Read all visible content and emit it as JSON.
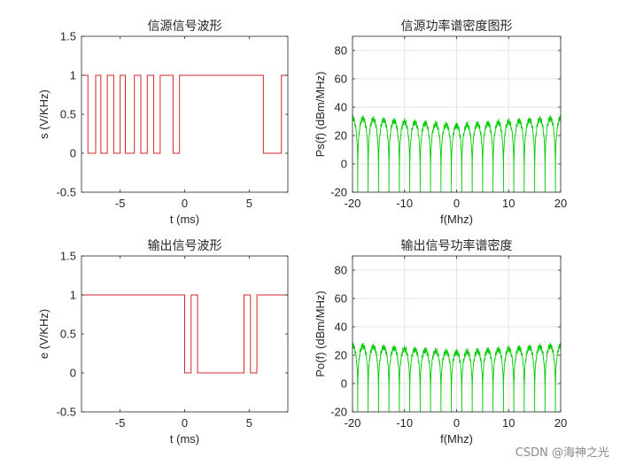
{
  "watermark": "CSDN @海神之光",
  "chart_data": [
    {
      "type": "line",
      "title": "信源信号波形",
      "xlabel": "t (ms)",
      "ylabel": "s  (V/KHz)",
      "xlim": [
        -8,
        8
      ],
      "ylim": [
        -0.5,
        1.5
      ],
      "xticks": [
        -5,
        0,
        5
      ],
      "yticks": [
        -0.5,
        0,
        0.5,
        1,
        1.5
      ],
      "grid": false,
      "series": [
        {
          "color": "#d62728",
          "x": [
            -8,
            -7.5,
            -7.5,
            -6.9,
            -6.9,
            -6.5,
            -6.5,
            -6.0,
            -6.0,
            -5.5,
            -5.5,
            -5.0,
            -5.0,
            -4.6,
            -4.6,
            -3.9,
            -3.9,
            -3.4,
            -3.4,
            -2.9,
            -2.9,
            -2.4,
            -2.4,
            -1.9,
            -1.9,
            -0.9,
            -0.9,
            -0.4,
            -0.4,
            6.1,
            6.1,
            7.5,
            7.5,
            8
          ],
          "y": [
            1,
            1,
            0,
            0,
            1,
            1,
            0,
            0,
            1,
            1,
            0,
            0,
            1,
            1,
            0,
            0,
            1,
            1,
            0,
            0,
            1,
            1,
            0,
            0,
            1,
            1,
            0,
            0,
            1,
            1,
            0,
            0,
            1,
            1
          ]
        }
      ]
    },
    {
      "type": "line",
      "title": "信源功率谱密度图形",
      "xlabel": "f(Mhz)",
      "ylabel": "Ps(f) (dBm/MHz)",
      "xlim": [
        -20,
        20
      ],
      "ylim": [
        -20,
        90
      ],
      "xticks": [
        -20,
        -10,
        0,
        10,
        20
      ],
      "yticks": [
        -20,
        0,
        20,
        40,
        60,
        80
      ],
      "grid": true,
      "series": [
        {
          "color": "#00cc00",
          "lobe_period": 2,
          "peak_level": 27,
          "null_level": -20
        }
      ]
    },
    {
      "type": "line",
      "title": "输出信号波形",
      "xlabel": "t (ms)",
      "ylabel": "e  (V/KHz)",
      "xlim": [
        -8,
        8
      ],
      "ylim": [
        -0.5,
        1.5
      ],
      "xticks": [
        -5,
        0,
        5
      ],
      "yticks": [
        -0.5,
        0,
        0.5,
        1,
        1.5
      ],
      "grid": false,
      "series": [
        {
          "color": "#d62728",
          "x": [
            -8,
            0,
            0,
            0.5,
            0.5,
            1.0,
            1.0,
            4.6,
            4.6,
            5.1,
            5.1,
            5.6,
            5.6,
            8
          ],
          "y": [
            1,
            1,
            0,
            0,
            1,
            1,
            0,
            0,
            1,
            1,
            0,
            0,
            1,
            1
          ]
        }
      ]
    },
    {
      "type": "line",
      "title": "输出信号功率谱密度",
      "xlabel": "f(Mhz)",
      "ylabel": "Po(f) (dBm/MHz)",
      "xlim": [
        -20,
        20
      ],
      "ylim": [
        -20,
        90
      ],
      "xticks": [
        -20,
        -10,
        0,
        10,
        20
      ],
      "yticks": [
        -20,
        0,
        20,
        40,
        60,
        80
      ],
      "grid": true,
      "series": [
        {
          "color": "#00cc00",
          "lobe_period": 2,
          "peak_level": 22,
          "null_level": -20
        }
      ]
    }
  ]
}
